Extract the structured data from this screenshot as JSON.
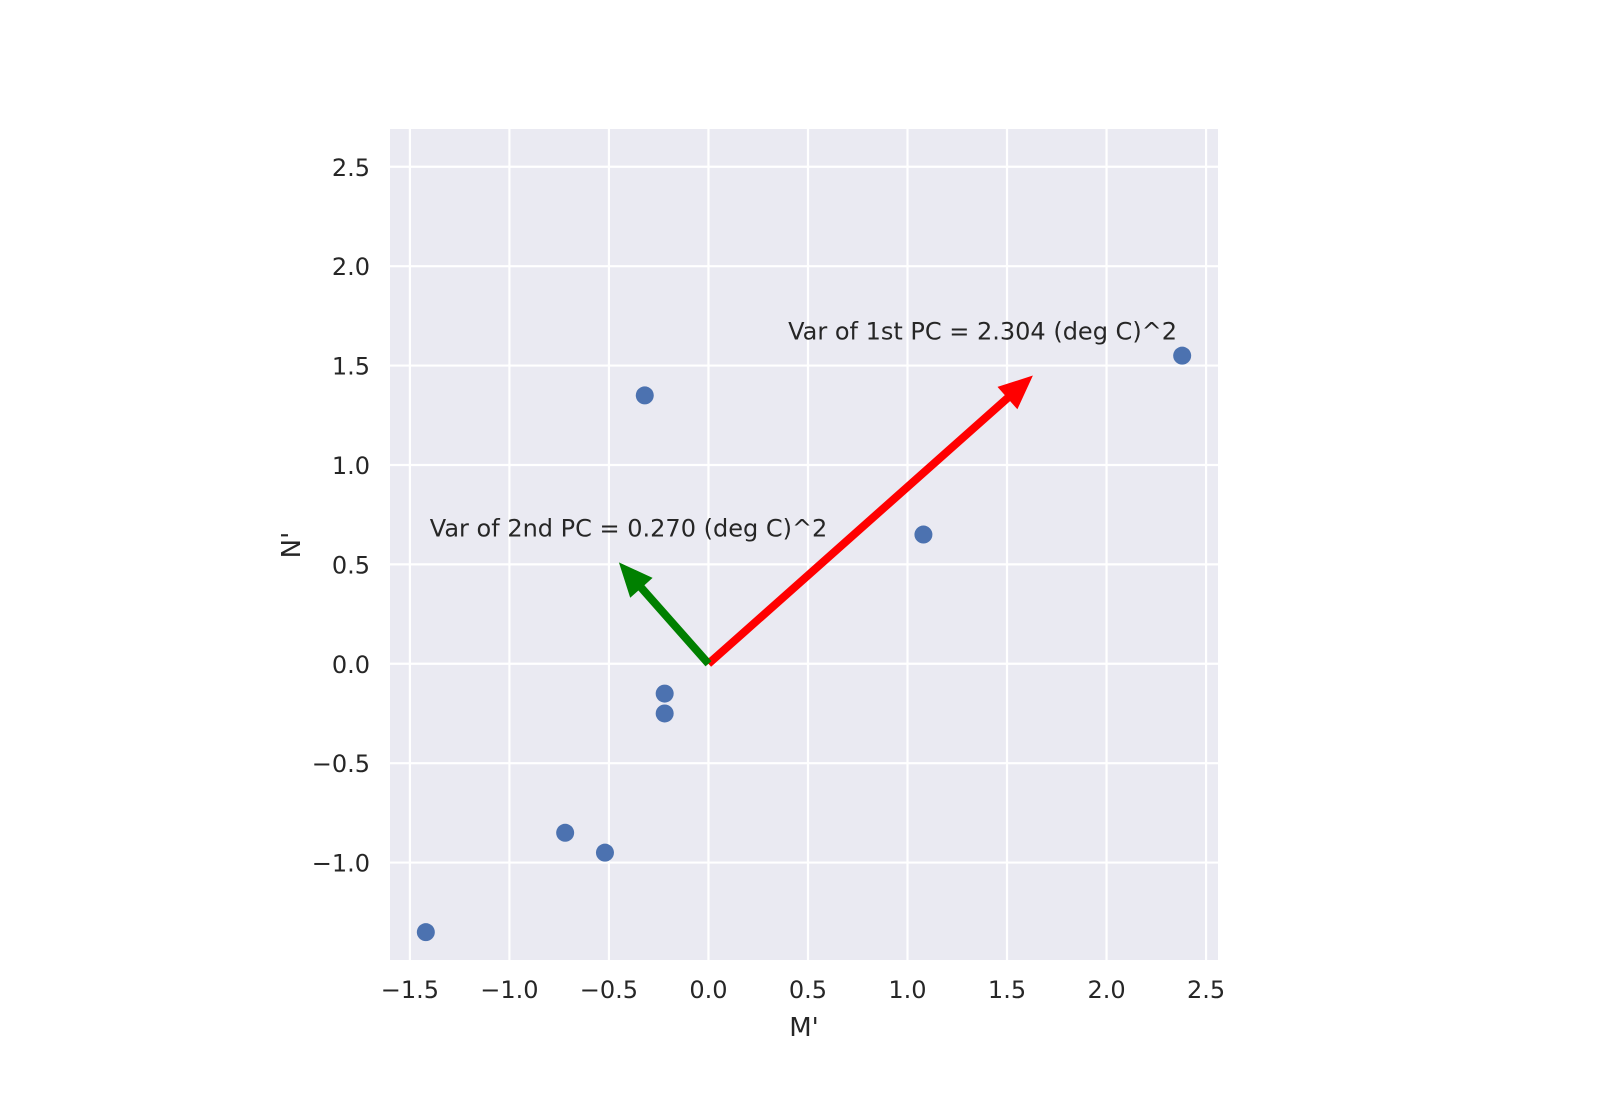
{
  "chart_data": {
    "type": "scatter",
    "xlabel": "M'",
    "ylabel": "N'",
    "xlim": [
      -1.6,
      2.56
    ],
    "ylim": [
      -1.49,
      2.69
    ],
    "xticks": [
      -1.5,
      -1.0,
      -0.5,
      0.0,
      0.5,
      1.0,
      1.5,
      2.0,
      2.5
    ],
    "yticks": [
      -1.0,
      -0.5,
      0.0,
      0.5,
      1.0,
      1.5,
      2.0,
      2.5
    ],
    "xtick_labels": [
      "−1.5",
      "−1.0",
      "−0.5",
      "0.0",
      "0.5",
      "1.0",
      "1.5",
      "2.0",
      "2.5"
    ],
    "ytick_labels": [
      "−1.0",
      "−0.5",
      "0.0",
      "0.5",
      "1.0",
      "1.5",
      "2.0",
      "2.5"
    ],
    "grid": true,
    "points": [
      {
        "x": -1.42,
        "y": -1.35
      },
      {
        "x": -0.72,
        "y": -0.85
      },
      {
        "x": -0.52,
        "y": -0.95
      },
      {
        "x": -0.22,
        "y": -0.15
      },
      {
        "x": -0.22,
        "y": -0.25
      },
      {
        "x": -0.32,
        "y": 1.35
      },
      {
        "x": 1.08,
        "y": 0.65
      },
      {
        "x": 2.38,
        "y": 1.55
      }
    ],
    "arrows": [
      {
        "from": [
          0,
          0
        ],
        "to": [
          1.63,
          1.45
        ],
        "color": "#ff0000",
        "label": "Var of 1st PC = 2.304 (deg C)^2",
        "label_at": [
          0.4,
          1.63
        ]
      },
      {
        "from": [
          0,
          0
        ],
        "to": [
          -0.45,
          0.51
        ],
        "color": "#008000",
        "label": "Var of 2nd PC = 0.270 (deg C)^2",
        "label_at": [
          -1.4,
          0.64
        ]
      }
    ],
    "colors": {
      "background": "#eaeaf2",
      "grid": "#ffffff",
      "points": "#4c72b0"
    }
  }
}
